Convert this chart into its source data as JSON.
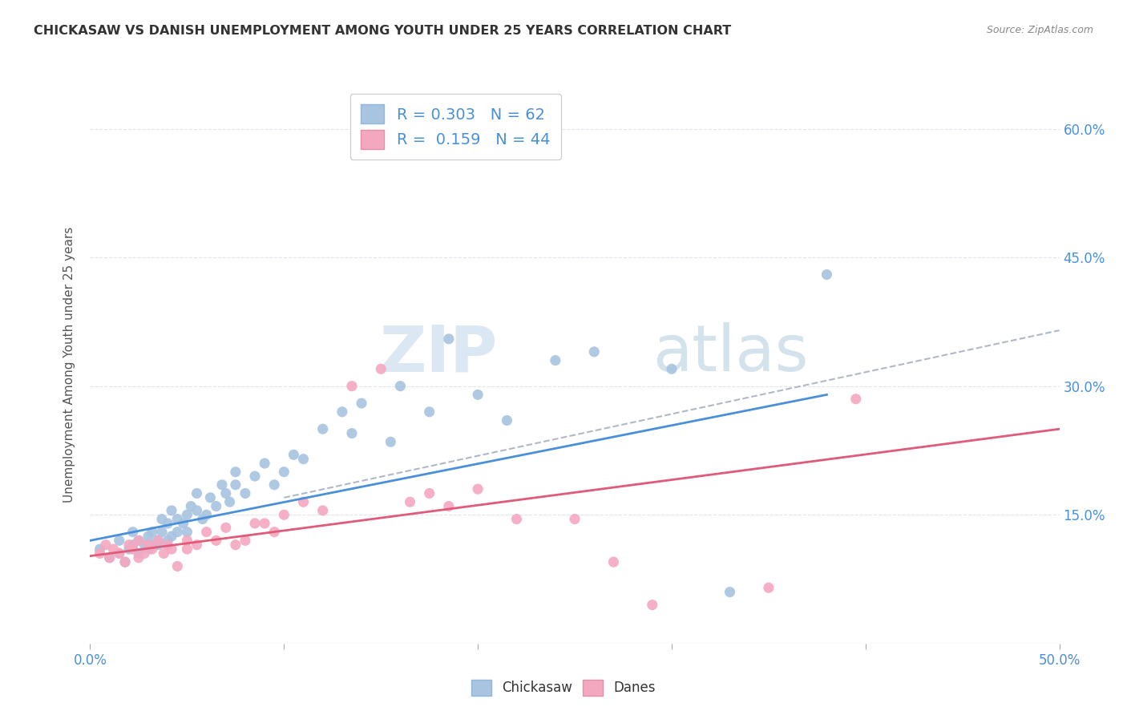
{
  "title": "CHICKASAW VS DANISH UNEMPLOYMENT AMONG YOUTH UNDER 25 YEARS CORRELATION CHART",
  "source": "Source: ZipAtlas.com",
  "ylabel": "Unemployment Among Youth under 25 years",
  "xlim": [
    0.0,
    0.5
  ],
  "ylim": [
    0.0,
    0.65
  ],
  "ytick_values": [
    0.15,
    0.3,
    0.45,
    0.6
  ],
  "ytick_labels": [
    "15.0%",
    "30.0%",
    "45.0%",
    "60.0%"
  ],
  "chickasaw_color": "#a8c4e0",
  "danes_color": "#f4a8c0",
  "chickasaw_line_color": "#4a90d9",
  "danes_line_color": "#e05a7a",
  "dashed_line_color": "#b0b8c8",
  "background_color": "#ffffff",
  "grid_color": "#d8dde8",
  "title_color": "#333333",
  "legend_text_color": "#4a90d9",
  "R_chickasaw": 0.303,
  "N_chickasaw": 62,
  "R_danes": 0.159,
  "N_danes": 44,
  "watermark_zip": "ZIP",
  "watermark_atlas": "atlas",
  "chickasaw_x": [
    0.005,
    0.01,
    0.015,
    0.015,
    0.018,
    0.02,
    0.022,
    0.022,
    0.025,
    0.025,
    0.028,
    0.03,
    0.03,
    0.032,
    0.032,
    0.035,
    0.035,
    0.037,
    0.037,
    0.04,
    0.04,
    0.042,
    0.042,
    0.045,
    0.045,
    0.048,
    0.05,
    0.05,
    0.052,
    0.055,
    0.055,
    0.058,
    0.06,
    0.062,
    0.065,
    0.068,
    0.07,
    0.072,
    0.075,
    0.075,
    0.08,
    0.085,
    0.09,
    0.095,
    0.1,
    0.105,
    0.11,
    0.12,
    0.13,
    0.135,
    0.14,
    0.155,
    0.16,
    0.175,
    0.185,
    0.2,
    0.215,
    0.24,
    0.26,
    0.3,
    0.33,
    0.38
  ],
  "chickasaw_y": [
    0.11,
    0.1,
    0.12,
    0.105,
    0.095,
    0.11,
    0.115,
    0.13,
    0.105,
    0.12,
    0.115,
    0.11,
    0.125,
    0.115,
    0.13,
    0.12,
    0.115,
    0.13,
    0.145,
    0.12,
    0.14,
    0.125,
    0.155,
    0.13,
    0.145,
    0.14,
    0.13,
    0.15,
    0.16,
    0.155,
    0.175,
    0.145,
    0.15,
    0.17,
    0.16,
    0.185,
    0.175,
    0.165,
    0.185,
    0.2,
    0.175,
    0.195,
    0.21,
    0.185,
    0.2,
    0.22,
    0.215,
    0.25,
    0.27,
    0.245,
    0.28,
    0.235,
    0.3,
    0.27,
    0.355,
    0.29,
    0.26,
    0.33,
    0.34,
    0.32,
    0.06,
    0.43
  ],
  "danes_x": [
    0.005,
    0.008,
    0.01,
    0.012,
    0.015,
    0.018,
    0.02,
    0.022,
    0.025,
    0.025,
    0.028,
    0.03,
    0.032,
    0.035,
    0.038,
    0.04,
    0.042,
    0.045,
    0.05,
    0.05,
    0.055,
    0.06,
    0.065,
    0.07,
    0.075,
    0.08,
    0.085,
    0.09,
    0.095,
    0.1,
    0.11,
    0.12,
    0.135,
    0.15,
    0.165,
    0.175,
    0.185,
    0.2,
    0.22,
    0.25,
    0.27,
    0.29,
    0.35,
    0.395
  ],
  "danes_y": [
    0.105,
    0.115,
    0.1,
    0.11,
    0.105,
    0.095,
    0.115,
    0.11,
    0.1,
    0.12,
    0.105,
    0.115,
    0.11,
    0.12,
    0.105,
    0.115,
    0.11,
    0.09,
    0.12,
    0.11,
    0.115,
    0.13,
    0.12,
    0.135,
    0.115,
    0.12,
    0.14,
    0.14,
    0.13,
    0.15,
    0.165,
    0.155,
    0.3,
    0.32,
    0.165,
    0.175,
    0.16,
    0.18,
    0.145,
    0.145,
    0.095,
    0.045,
    0.065,
    0.285
  ],
  "chickasaw_trendline_x": [
    0.0,
    0.38
  ],
  "chickasaw_trendline_y": [
    0.12,
    0.29
  ],
  "danes_trendline_x": [
    0.0,
    0.5
  ],
  "danes_trendline_y": [
    0.102,
    0.25
  ],
  "dashed_trendline_x": [
    0.1,
    0.5
  ],
  "dashed_trendline_y": [
    0.17,
    0.365
  ],
  "figsize": [
    14.06,
    8.92
  ],
  "dpi": 100
}
